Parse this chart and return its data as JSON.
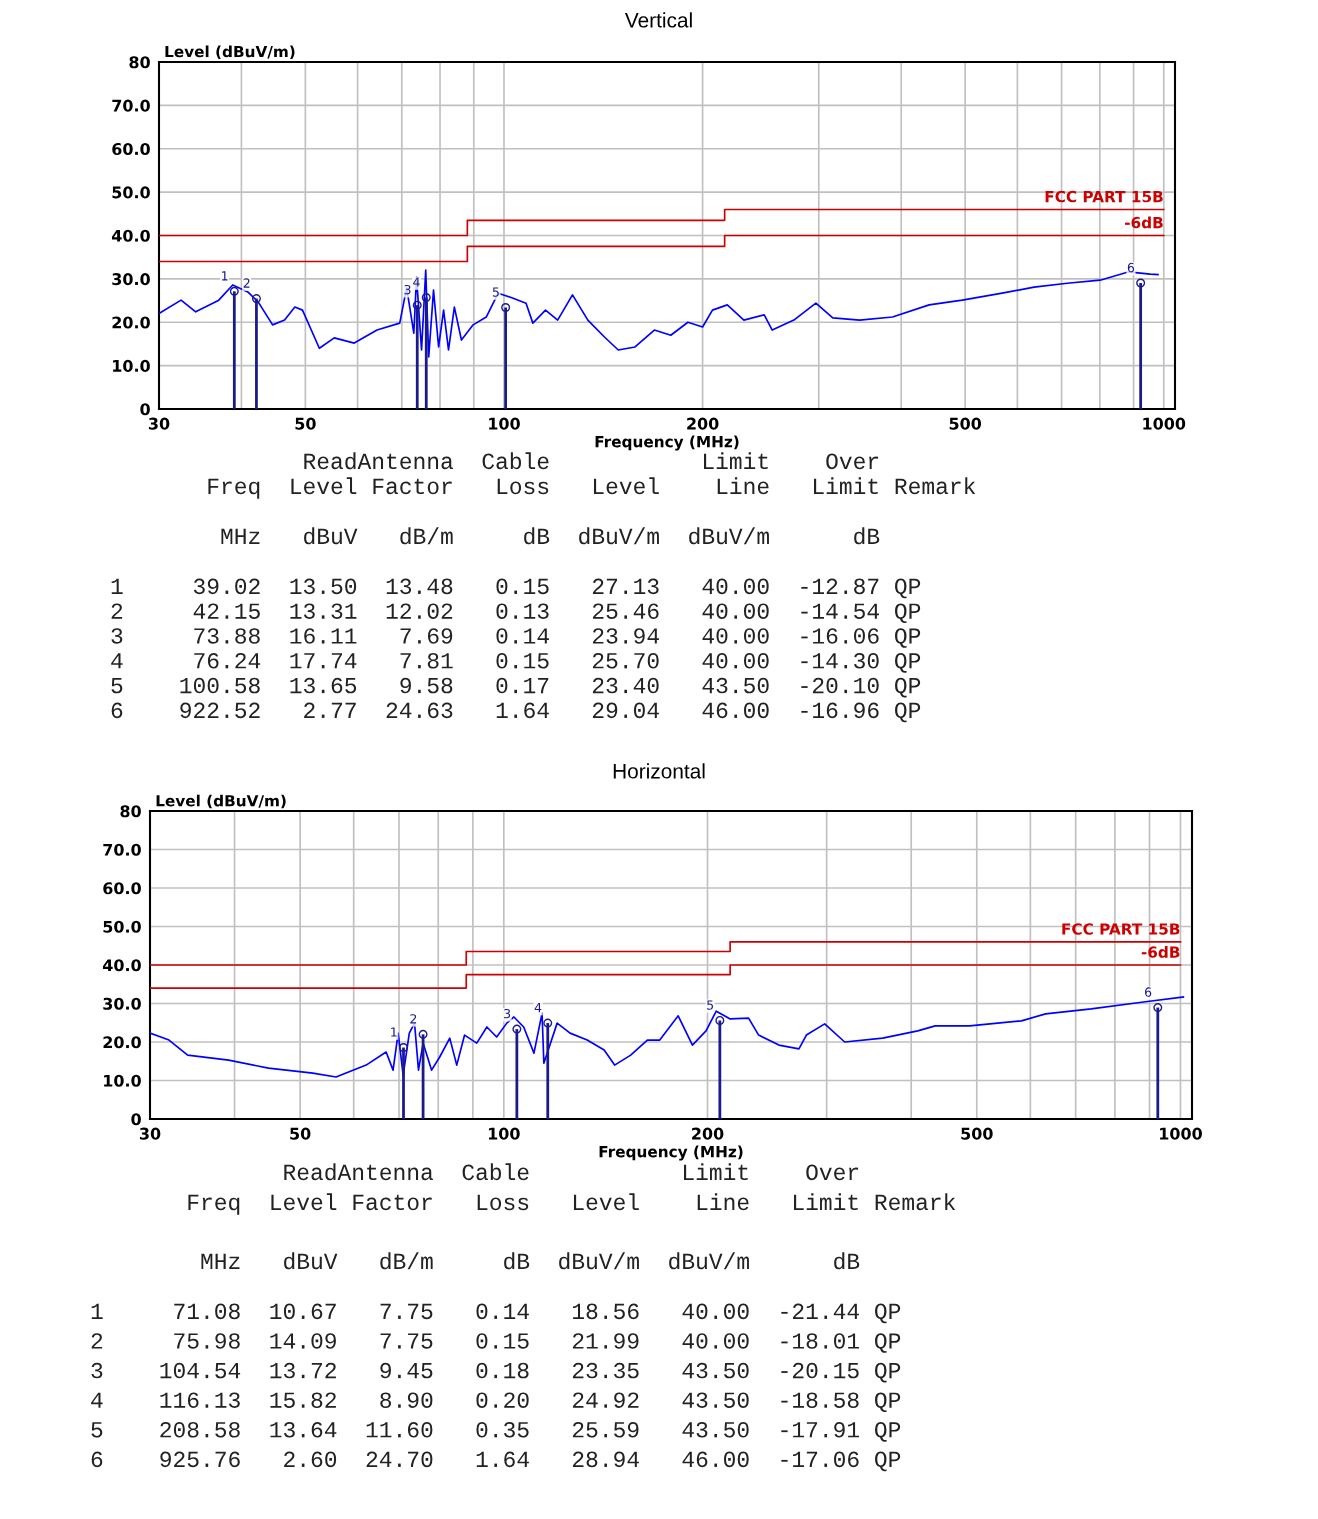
{
  "chart_data": [
    {
      "type": "line",
      "title": "Vertical",
      "ylabel": "Level (dBuV/m)",
      "xlabel": "Frequency (MHz)",
      "log": "x",
      "grid": true,
      "marker": "none",
      "line_style": "solid",
      "xlim": [
        30,
        1040
      ],
      "xticks": [
        30,
        {
          "value": 40,
          "label": null
        },
        50,
        {
          "value": 60,
          "label": null
        },
        {
          "value": 70,
          "label": null
        },
        {
          "value": 80,
          "label": null
        },
        {
          "value": 90,
          "label": null
        },
        100,
        200,
        {
          "value": 300,
          "label": null
        },
        {
          "value": 400,
          "label": null
        },
        500,
        {
          "value": 600,
          "label": null
        },
        {
          "value": 700,
          "label": null
        },
        {
          "value": 800,
          "label": null
        },
        {
          "value": 900,
          "label": null
        },
        1000
      ],
      "ylim": [
        0,
        80
      ],
      "yticks": [
        0,
        {
          "value": 10,
          "label": "10.0"
        },
        {
          "value": 20,
          "label": "20.0"
        },
        {
          "value": 30,
          "label": "30.0"
        },
        {
          "value": 40,
          "label": "40.0"
        },
        {
          "value": 50,
          "label": "50.0"
        },
        {
          "value": 60,
          "label": "60.0"
        },
        {
          "value": 70,
          "label": "70.0"
        },
        80
      ],
      "series": [
        {
          "type": "line",
          "color": "#0000ff",
          "x": [
            30,
            32.4,
            34.1,
            36.9,
            38.8,
            40.9,
            42.4,
            44.6,
            46.5,
            48.2,
            49.5,
            52.5,
            55.3,
            59.3,
            64.2,
            69.5,
            71.2,
            73.0,
            73.7,
            75,
            76.1,
            76.9,
            78.2,
            79.6,
            81,
            82.4,
            84.1,
            86.2,
            89.8,
            94,
            98,
            103,
            108,
            110.6,
            115.6,
            120.6,
            127,
            134,
            142,
            149,
            158,
            169,
            179,
            190,
            200,
            207,
            218,
            231,
            248,
            255,
            275,
            297,
            315,
            346,
            388,
            441,
            495,
            569,
            636,
            714,
            801,
            883,
            954,
            980
          ],
          "values": [
            22,
            25.1,
            22.4,
            25,
            28.6,
            27,
            24.7,
            19.4,
            20.5,
            23.5,
            22.8,
            14,
            16.4,
            15.2,
            18.2,
            19.8,
            28,
            17.5,
            30.4,
            13.6,
            32,
            12,
            27.4,
            14.3,
            22.8,
            13.6,
            23.5,
            15.9,
            19.4,
            21.2,
            26.7,
            25.6,
            24.4,
            19.8,
            22.8,
            20.5,
            26.3,
            20.5,
            16.6,
            13.6,
            14.3,
            18.2,
            17,
            20,
            18.9,
            22.8,
            24,
            20.5,
            21.7,
            18.2,
            20.5,
            24.4,
            21,
            20.5,
            21.2,
            24,
            25.1,
            26.7,
            28.1,
            29,
            29.7,
            31.6,
            31.1,
            31
          ]
        },
        {
          "type": "line",
          "color": "#cc0000",
          "x": [
            30,
            88,
            88,
            216,
            216,
            1000
          ],
          "values": [
            40,
            40,
            43.5,
            43.5,
            46,
            46
          ]
        },
        {
          "type": "line",
          "color": "#cc0000",
          "x": [
            30,
            88,
            88,
            216,
            216,
            1000
          ],
          "values": [
            34,
            34,
            37.5,
            37.5,
            40,
            40
          ]
        },
        {
          "type": "lollipop",
          "color": "#1a1a8c",
          "x": [
            39.02,
            42.15,
            73.88,
            76.24,
            100.58,
            922.52
          ],
          "values": [
            27.13,
            25.46,
            23.94,
            25.7,
            23.4,
            29.04
          ]
        }
      ],
      "annotations": [
        {
          "text": "FCC PART 15B",
          "x": 1000,
          "y": 46
        },
        {
          "text": "-6dB",
          "x": 1000,
          "y": 40
        },
        {
          "text": "1",
          "x": 39.02,
          "y": 27.13
        },
        {
          "text": "2",
          "x": 42.15,
          "y": 25.46
        },
        {
          "text": "3",
          "x": 73.88,
          "y": 23.94
        },
        {
          "text": "4",
          "x": 76.24,
          "y": 25.7
        },
        {
          "text": "5",
          "x": 100.58,
          "y": 23.4
        },
        {
          "text": "6",
          "x": 922.52,
          "y": 29.04
        },
        "              ReadAntenna  Cable           Limit    Over",
        "       Freq  Level Factor   Loss   Level    Line   Limit Remark",
        "        MHz   dBuV   dB/m     dB  dBuV/m  dBuV/m      dB",
        "1     39.02  13.50  13.48   0.15   27.13   40.00  -12.87 QP",
        "2     42.15  13.31  12.02   0.13   25.46   40.00  -14.54 QP",
        "3     73.88  16.11   7.69   0.14   23.94   40.00  -16.06 QP",
        "4     76.24  17.74   7.81   0.15   25.70   40.00  -14.30 QP",
        "5    100.58  13.65   9.58   0.17   23.40   43.50  -20.10 QP",
        "6    922.52   2.77  24.63   1.64   29.04   46.00  -16.96 QP"
      ]
    },
    {
      "type": "line",
      "title": "Horizontal",
      "ylabel": "Level (dBuV/m)",
      "xlabel": "Frequency (MHz)",
      "log": "x",
      "grid": true,
      "marker": "none",
      "line_style": "solid",
      "xlim": [
        30,
        1040
      ],
      "xticks": [
        30,
        {
          "value": 40,
          "label": null
        },
        50,
        {
          "value": 60,
          "label": null
        },
        {
          "value": 70,
          "label": null
        },
        {
          "value": 80,
          "label": null
        },
        {
          "value": 90,
          "label": null
        },
        100,
        200,
        {
          "value": 300,
          "label": null
        },
        {
          "value": 400,
          "label": null
        },
        500,
        {
          "value": 600,
          "label": null
        },
        {
          "value": 700,
          "label": null
        },
        {
          "value": 800,
          "label": null
        },
        {
          "value": 900,
          "label": null
        },
        1000
      ],
      "ylim": [
        0,
        80
      ],
      "yticks": [
        0,
        {
          "value": 10,
          "label": "10.0"
        },
        {
          "value": 20,
          "label": "20.0"
        },
        {
          "value": 30,
          "label": "30.0"
        },
        {
          "value": 40,
          "label": "40.0"
        },
        {
          "value": 50,
          "label": "50.0"
        },
        {
          "value": 60,
          "label": "60.0"
        },
        {
          "value": 70,
          "label": "70.0"
        },
        80
      ],
      "series": [
        {
          "type": "line",
          "color": "#0000ff",
          "x": [
            30,
            32,
            34.1,
            39.2,
            44.9,
            52.2,
            56.5,
            62.6,
            67,
            68.6,
            69.8,
            71,
            72.5,
            73.8,
            74.8,
            76,
            78.2,
            80.4,
            83.2,
            85.2,
            87.5,
            91.2,
            94.4,
            97.6,
            101,
            103.5,
            107,
            110.8,
            113.9,
            114.6,
            119.9,
            125.3,
            132.8,
            140.7,
            145.8,
            154,
            163,
            170,
            181,
            190,
            199,
            206,
            216,
            230,
            238,
            255,
            273,
            280,
            298,
            319,
            363,
            409,
            434,
            488,
            582,
            632,
            738,
            882,
            1010
          ],
          "values": [
            22.3,
            20.5,
            16.6,
            15.3,
            13.2,
            11.9,
            10.9,
            14,
            17.4,
            12.7,
            22.3,
            11.4,
            22.3,
            24.9,
            12.7,
            19.7,
            12.7,
            16.1,
            21,
            14,
            21.8,
            19.7,
            23.9,
            21.3,
            24.9,
            26.5,
            23.9,
            17.1,
            27.5,
            14.5,
            24.9,
            22.3,
            20.5,
            17.9,
            14,
            16.6,
            20.5,
            20.5,
            26.8,
            19.2,
            22.9,
            28,
            26,
            26.2,
            21.8,
            19.2,
            18.2,
            21.8,
            24.7,
            20,
            21,
            22.9,
            24.2,
            24.2,
            25.5,
            27.3,
            28.6,
            30.4,
            31.7
          ]
        },
        {
          "type": "line",
          "color": "#cc0000",
          "x": [
            30,
            88,
            88,
            216,
            216,
            1000
          ],
          "values": [
            40,
            40,
            43.5,
            43.5,
            46,
            46
          ]
        },
        {
          "type": "line",
          "color": "#cc0000",
          "x": [
            30,
            88,
            88,
            216,
            216,
            1000
          ],
          "values": [
            34,
            34,
            37.5,
            37.5,
            40,
            40
          ]
        },
        {
          "type": "lollipop",
          "color": "#1a1a8c",
          "x": [
            71.08,
            75.98,
            104.54,
            116.13,
            208.58,
            925.76
          ],
          "values": [
            18.56,
            21.99,
            23.35,
            24.92,
            25.59,
            28.94
          ]
        }
      ],
      "annotations": [
        {
          "text": "FCC PART 15B",
          "x": 1000,
          "y": 46
        },
        {
          "text": "-6dB",
          "x": 1000,
          "y": 40
        },
        {
          "text": "1",
          "x": 71.08,
          "y": 18.56
        },
        {
          "text": "2",
          "x": 75.98,
          "y": 21.99
        },
        {
          "text": "3",
          "x": 104.54,
          "y": 23.35
        },
        {
          "text": "4",
          "x": 116.13,
          "y": 24.92
        },
        {
          "text": "5",
          "x": 208.58,
          "y": 25.59
        },
        {
          "text": "6",
          "x": 925.76,
          "y": 28.94
        },
        "              ReadAntenna  Cable           Limit    Over",
        "       Freq  Level Factor   Loss   Level    Line   Limit Remark",
        "        MHz   dBuV   dB/m     dB  dBuV/m  dBuV/m      dB",
        "1     71.08  10.67   7.75   0.14   18.56   40.00  -21.44 QP",
        "2     75.98  14.09   7.75   0.15   21.99   40.00  -18.01 QP",
        "3    104.54  13.72   9.45   0.18   23.35   43.50  -20.15 QP",
        "4    116.13  15.82   8.90   0.20   24.92   43.50  -18.58 QP",
        "5    208.58  13.64  11.60   0.35   25.59   43.50  -17.91 QP",
        "6    925.76   2.60  24.70   1.64   28.94   46.00  -17.06 QP"
      ]
    }
  ]
}
